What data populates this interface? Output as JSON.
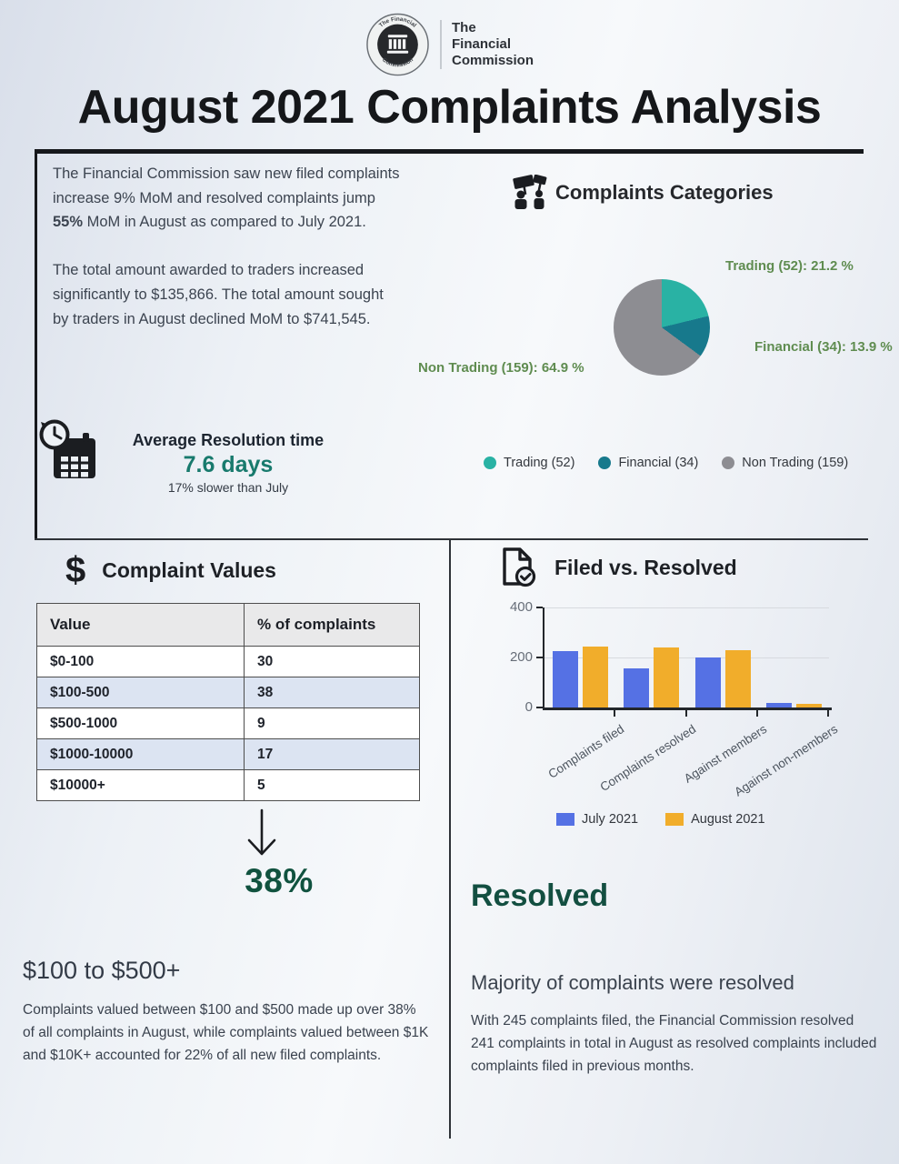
{
  "logo": {
    "emblem_ring_top": "The Financial",
    "emblem_ring_bottom": "Commission",
    "wordmark_line1": "The",
    "wordmark_line2": "Financial",
    "wordmark_line3": "Commission"
  },
  "title": "August 2021 Complaints Analysis",
  "intro": {
    "p1_before": "The Financial Commission saw new filed complaints increase 9% MoM  and resolved complaints jump ",
    "p1_bold": "55%",
    "p1_after": " MoM in August as compared to July 2021.",
    "p2": "The total amount awarded to traders increased significantly to $135,866. The total amount sought by traders in August declined MoM to $741,545."
  },
  "categories_heading": "Complaints Categories",
  "resolution": {
    "title": "Average Resolution time",
    "value": "7.6 days",
    "note": "17% slower than July"
  },
  "values_section": {
    "dollar_icon": "$",
    "heading": "Complaint Values",
    "callout_percent": "38%",
    "subheading": "$100 to $500+",
    "body": "Complaints valued between $100 and $500 made up over 38% of all complaints in August, while complaints valued between $1K and $10K+ accounted for 22% of all new filed complaints."
  },
  "filed_section": {
    "heading": "Filed vs. Resolved",
    "resolved_title": "Resolved",
    "resolved_subheading": "Majority of complaints were resolved",
    "resolved_body": "With 245 complaints filed, the Financial Commission resolved 241 complaints in total in August as resolved complaints included complaints filed in previous months."
  },
  "colors": {
    "trading": "#29b2a4",
    "financial": "#17798c",
    "non_trading": "#8d8d92",
    "pie_label_green": "#5f8c50",
    "accent_teal": "#187a6d",
    "accent_dark_green": "#10523f",
    "bar_july": "#5571e4",
    "bar_august": "#f1ad2b"
  },
  "chart_data": [
    {
      "type": "pie",
      "title": "Complaints Categories",
      "labels": [
        "Trading (52)",
        "Financial (34)",
        "Non Trading (159)"
      ],
      "counts": [
        52,
        34,
        159
      ],
      "percents": [
        21.2,
        13.9,
        64.9
      ],
      "callout_labels": [
        "Trading (52): 21.2 %",
        "Financial (34): 13.9 %",
        "Non Trading (159): 64.9 %"
      ],
      "colors": [
        "#29b2a4",
        "#17798c",
        "#8d8d92"
      ],
      "start_angle_deg": 0,
      "legend_position": "bottom"
    },
    {
      "type": "bar",
      "title": "Filed vs. Resolved",
      "categories": [
        "Complaints filed",
        "Complaints resolved",
        "Against members",
        "Against non-members"
      ],
      "series": [
        {
          "name": "July 2021",
          "color": "#5571e4",
          "values": [
            225,
            155,
            200,
            20
          ]
        },
        {
          "name": "August 2021",
          "color": "#f1ad2b",
          "values": [
            245,
            241,
            228,
            15
          ]
        }
      ],
      "ylim": [
        0,
        400
      ],
      "yticks": [
        0,
        200,
        400
      ],
      "grid": true,
      "legend_position": "bottom"
    },
    {
      "type": "table",
      "title": "Complaint Values",
      "columns": [
        "Value",
        "% of complaints"
      ],
      "rows": [
        [
          "$0-100",
          "30"
        ],
        [
          "$100-500",
          "38"
        ],
        [
          "$500-1000",
          "9"
        ],
        [
          "$1000-10000",
          "17"
        ],
        [
          "$10000+",
          "5"
        ]
      ]
    }
  ]
}
